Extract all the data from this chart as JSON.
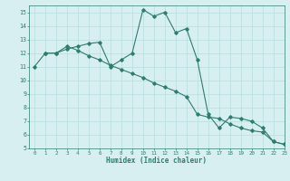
{
  "line1_x": [
    0,
    1,
    2,
    3,
    4,
    5,
    6,
    7,
    8,
    9,
    10,
    11,
    12,
    13,
    14,
    15,
    16,
    17,
    18,
    19,
    20,
    21,
    22,
    23
  ],
  "line1_y": [
    11.0,
    12.0,
    12.0,
    12.5,
    12.2,
    11.8,
    11.5,
    11.1,
    10.8,
    10.5,
    10.2,
    9.8,
    9.5,
    9.2,
    8.8,
    7.5,
    7.3,
    7.2,
    6.8,
    6.5,
    6.3,
    6.2,
    5.5,
    5.3
  ],
  "line2_x": [
    1,
    2,
    3,
    4,
    5,
    6,
    7,
    8,
    9,
    10,
    11,
    12,
    13,
    14,
    15,
    16,
    17,
    18,
    19,
    20,
    21,
    22,
    23
  ],
  "line2_y": [
    12.0,
    12.0,
    12.3,
    12.5,
    12.7,
    12.8,
    11.0,
    11.5,
    12.0,
    15.2,
    14.7,
    15.0,
    13.5,
    13.8,
    11.5,
    7.5,
    6.5,
    7.3,
    7.2,
    7.0,
    6.5,
    5.5,
    5.3
  ],
  "line_color": "#2e7d6e",
  "bg_color": "#d7eff0",
  "grid_color": "#b8dde0",
  "xlabel": "Humidex (Indice chaleur)",
  "xlim": [
    -0.5,
    23
  ],
  "ylim": [
    5,
    15.5
  ],
  "yticks": [
    5,
    6,
    7,
    8,
    9,
    10,
    11,
    12,
    13,
    14,
    15
  ],
  "xticks": [
    0,
    1,
    2,
    3,
    4,
    5,
    6,
    7,
    8,
    9,
    10,
    11,
    12,
    13,
    14,
    15,
    16,
    17,
    18,
    19,
    20,
    21,
    22,
    23
  ]
}
